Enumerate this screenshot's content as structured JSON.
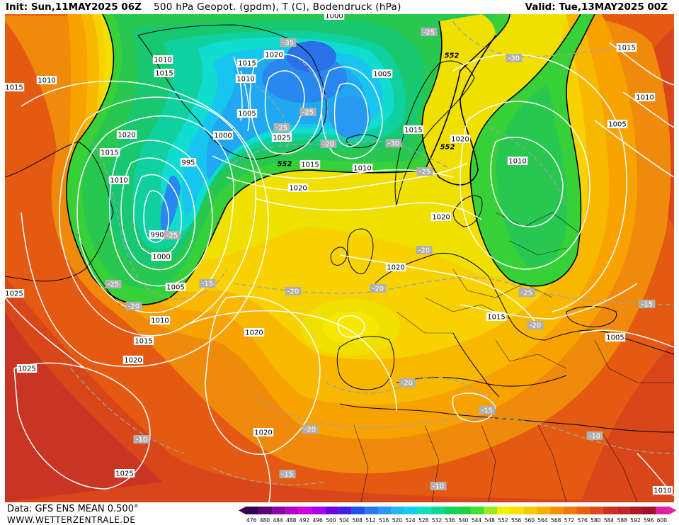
{
  "header": {
    "init": "Init: Sun,11MAY2025 06Z",
    "title": "500 hPa Geopot. (gpdm), T (C), Bodendruck (hPa)",
    "valid": "Valid: Tue,13MAY2025 00Z"
  },
  "footer": {
    "source": "Data: GFS ENS MEAN 0.500°",
    "website": "WWW.WETTERZENTRALE.DE"
  },
  "legend": {
    "values": [
      "476",
      "480",
      "484",
      "488",
      "492",
      "496",
      "500",
      "504",
      "508",
      "512",
      "516",
      "520",
      "524",
      "528",
      "532",
      "536",
      "540",
      "544",
      "548",
      "552",
      "556",
      "560",
      "564",
      "568",
      "572",
      "576",
      "580",
      "584",
      "588",
      "592",
      "596",
      "600"
    ],
    "colors": [
      "#3a0050",
      "#5a0078",
      "#8a00a8",
      "#b000c8",
      "#d000e0",
      "#a800e8",
      "#7000e0",
      "#4020e0",
      "#2050f0",
      "#2878f0",
      "#2898f8",
      "#20b8f8",
      "#10d0f0",
      "#10e0c0",
      "#10d890",
      "#10d060",
      "#20d040",
      "#40e030",
      "#a0e820",
      "#f0f000",
      "#f8e000",
      "#f8c800",
      "#f8b000",
      "#f89000",
      "#f07810",
      "#e86010",
      "#e04818",
      "#d03020",
      "#c02828",
      "#b01828",
      "#a01030",
      "#e020a0"
    ]
  },
  "map": {
    "isobar_labels": [
      {
        "text": "1010",
        "at": [
          230,
          84
        ]
      },
      {
        "text": "1015",
        "at": [
          232,
          103
        ]
      },
      {
        "text": "1015",
        "at": [
          20,
          123
        ]
      },
      {
        "text": "1010",
        "at": [
          66,
          113
        ]
      },
      {
        "text": "1015",
        "at": [
          349,
          89
        ]
      },
      {
        "text": "1010",
        "at": [
          347,
          111
        ]
      },
      {
        "text": "1005",
        "at": [
          349,
          160
        ]
      },
      {
        "text": "1020",
        "at": [
          387,
          77
        ]
      },
      {
        "text": "1000",
        "at": [
          472,
          22
        ]
      },
      {
        "text": "1005",
        "at": [
          540,
          104
        ]
      },
      {
        "text": "1025",
        "at": [
          398,
          194
        ]
      },
      {
        "text": "1000",
        "at": [
          315,
          191
        ]
      },
      {
        "text": "995",
        "at": [
          266,
          229
        ]
      },
      {
        "text": "1015",
        "at": [
          438,
          232
        ]
      },
      {
        "text": "1010",
        "at": [
          512,
          237
        ]
      },
      {
        "text": "1015",
        "at": [
          584,
          183
        ]
      },
      {
        "text": "1020",
        "at": [
          650,
          196
        ]
      },
      {
        "text": "1020",
        "at": [
          421,
          265
        ]
      },
      {
        "text": "1020",
        "at": [
          179,
          190
        ]
      },
      {
        "text": "1015",
        "at": [
          155,
          215
        ]
      },
      {
        "text": "1010",
        "at": [
          168,
          254
        ]
      },
      {
        "text": "990",
        "at": [
          222,
          331
        ]
      },
      {
        "text": "1000",
        "at": [
          228,
          362
        ]
      },
      {
        "text": "1005",
        "at": [
          248,
          405
        ]
      },
      {
        "text": "1010",
        "at": [
          226,
          452
        ]
      },
      {
        "text": "1015",
        "at": [
          203,
          481
        ]
      },
      {
        "text": "1020",
        "at": [
          188,
          508
        ]
      },
      {
        "text": "1020",
        "at": [
          359,
          469
        ]
      },
      {
        "text": "1025",
        "at": [
          20,
          414
        ]
      },
      {
        "text": "1025",
        "at": [
          38,
          520
        ]
      },
      {
        "text": "1025",
        "at": [
          176,
          668
        ]
      },
      {
        "text": "1020",
        "at": [
          372,
          610
        ]
      },
      {
        "text": "1020",
        "at": [
          623,
          306
        ]
      },
      {
        "text": "1020",
        "at": [
          559,
          377
        ]
      },
      {
        "text": "1015",
        "at": [
          701,
          447
        ]
      },
      {
        "text": "1010",
        "at": [
          731,
          227
        ]
      },
      {
        "text": "1015",
        "at": [
          885,
          67
        ]
      },
      {
        "text": "1010",
        "at": [
          911,
          137
        ]
      },
      {
        "text": "1005",
        "at": [
          872,
          175
        ]
      },
      {
        "text": "1005",
        "at": [
          869,
          476
        ]
      },
      {
        "text": "1010",
        "at": [
          936,
          692
        ]
      }
    ],
    "temp_labels": [
      {
        "text": "-35",
        "at": [
          407,
          60
        ]
      },
      {
        "text": "-25",
        "at": [
          606,
          45
        ]
      },
      {
        "text": "-30",
        "at": [
          726,
          82
        ]
      },
      {
        "text": "-25",
        "at": [
          398,
          180
        ]
      },
      {
        "text": "-25",
        "at": [
          435,
          158
        ]
      },
      {
        "text": "-20",
        "at": [
          464,
          203
        ]
      },
      {
        "text": "-30",
        "at": [
          556,
          202
        ]
      },
      {
        "text": "-25",
        "at": [
          600,
          242
        ]
      },
      {
        "text": "-25",
        "at": [
          243,
          332
        ]
      },
      {
        "text": "-25",
        "at": [
          160,
          401
        ]
      },
      {
        "text": "-20",
        "at": [
          189,
          432
        ]
      },
      {
        "text": "-15",
        "at": [
          293,
          400
        ]
      },
      {
        "text": "-20",
        "at": [
          414,
          411
        ]
      },
      {
        "text": "-20",
        "at": [
          534,
          407
        ]
      },
      {
        "text": "-20",
        "at": [
          599,
          353
        ]
      },
      {
        "text": "-25",
        "at": [
          744,
          413
        ]
      },
      {
        "text": "-20",
        "at": [
          756,
          459
        ]
      },
      {
        "text": "-15",
        "at": [
          914,
          429
        ]
      },
      {
        "text": "-20",
        "at": [
          575,
          540
        ]
      },
      {
        "text": "-15",
        "at": [
          688,
          579
        ]
      },
      {
        "text": "-10",
        "at": [
          840,
          615
        ]
      },
      {
        "text": "-20",
        "at": [
          438,
          606
        ]
      },
      {
        "text": "-10",
        "at": [
          200,
          620
        ]
      },
      {
        "text": "-15",
        "at": [
          406,
          669
        ]
      },
      {
        "text": "-10",
        "at": [
          619,
          686
        ]
      }
    ],
    "height_labels": [
      {
        "text": "552",
        "at": [
          638,
          78
        ]
      },
      {
        "text": "552",
        "at": [
          402,
          231
        ]
      },
      {
        "text": "552",
        "at": [
          632,
          207
        ]
      }
    ]
  }
}
